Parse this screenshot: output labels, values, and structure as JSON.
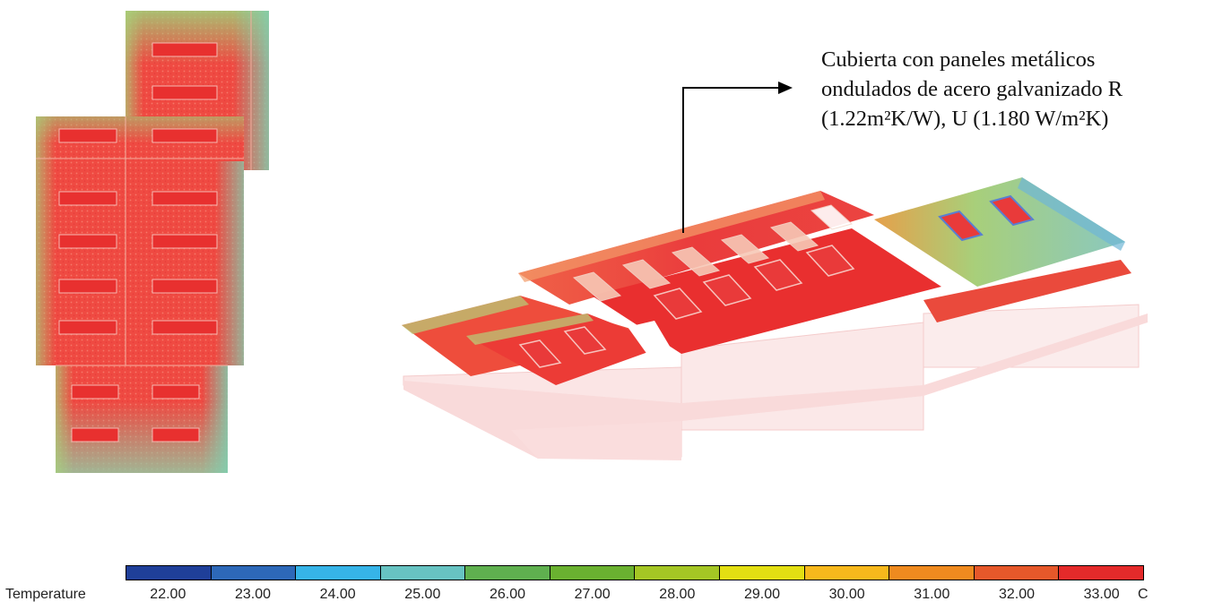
{
  "annotation": {
    "lines": [
      "Cubierta con paneles metálicos",
      "ondulados de acero galvanizado R",
      "(1.22m²K/W), U (1.180 W/m²K)"
    ]
  },
  "legend": {
    "title": "Temperature",
    "unit": "C",
    "ticks": [
      "22.00",
      "23.00",
      "24.00",
      "25.00",
      "26.00",
      "27.00",
      "28.00",
      "29.00",
      "30.00",
      "31.00",
      "32.00",
      "33.00"
    ],
    "colors": [
      "#1f3f99",
      "#2d68b8",
      "#36b4e8",
      "#67c3c2",
      "#5fb04f",
      "#6ab130",
      "#a4c624",
      "#e3df12",
      "#f7b81c",
      "#ef8a1f",
      "#e6582a",
      "#e42a2a"
    ]
  },
  "palette": {
    "hot": "#ec3a38",
    "warm": "#f06a3a",
    "green": "#9fd27a",
    "cyan": "#5fc6c8",
    "blue": "#5a7fd0",
    "ghost": "#f7d0d0"
  }
}
